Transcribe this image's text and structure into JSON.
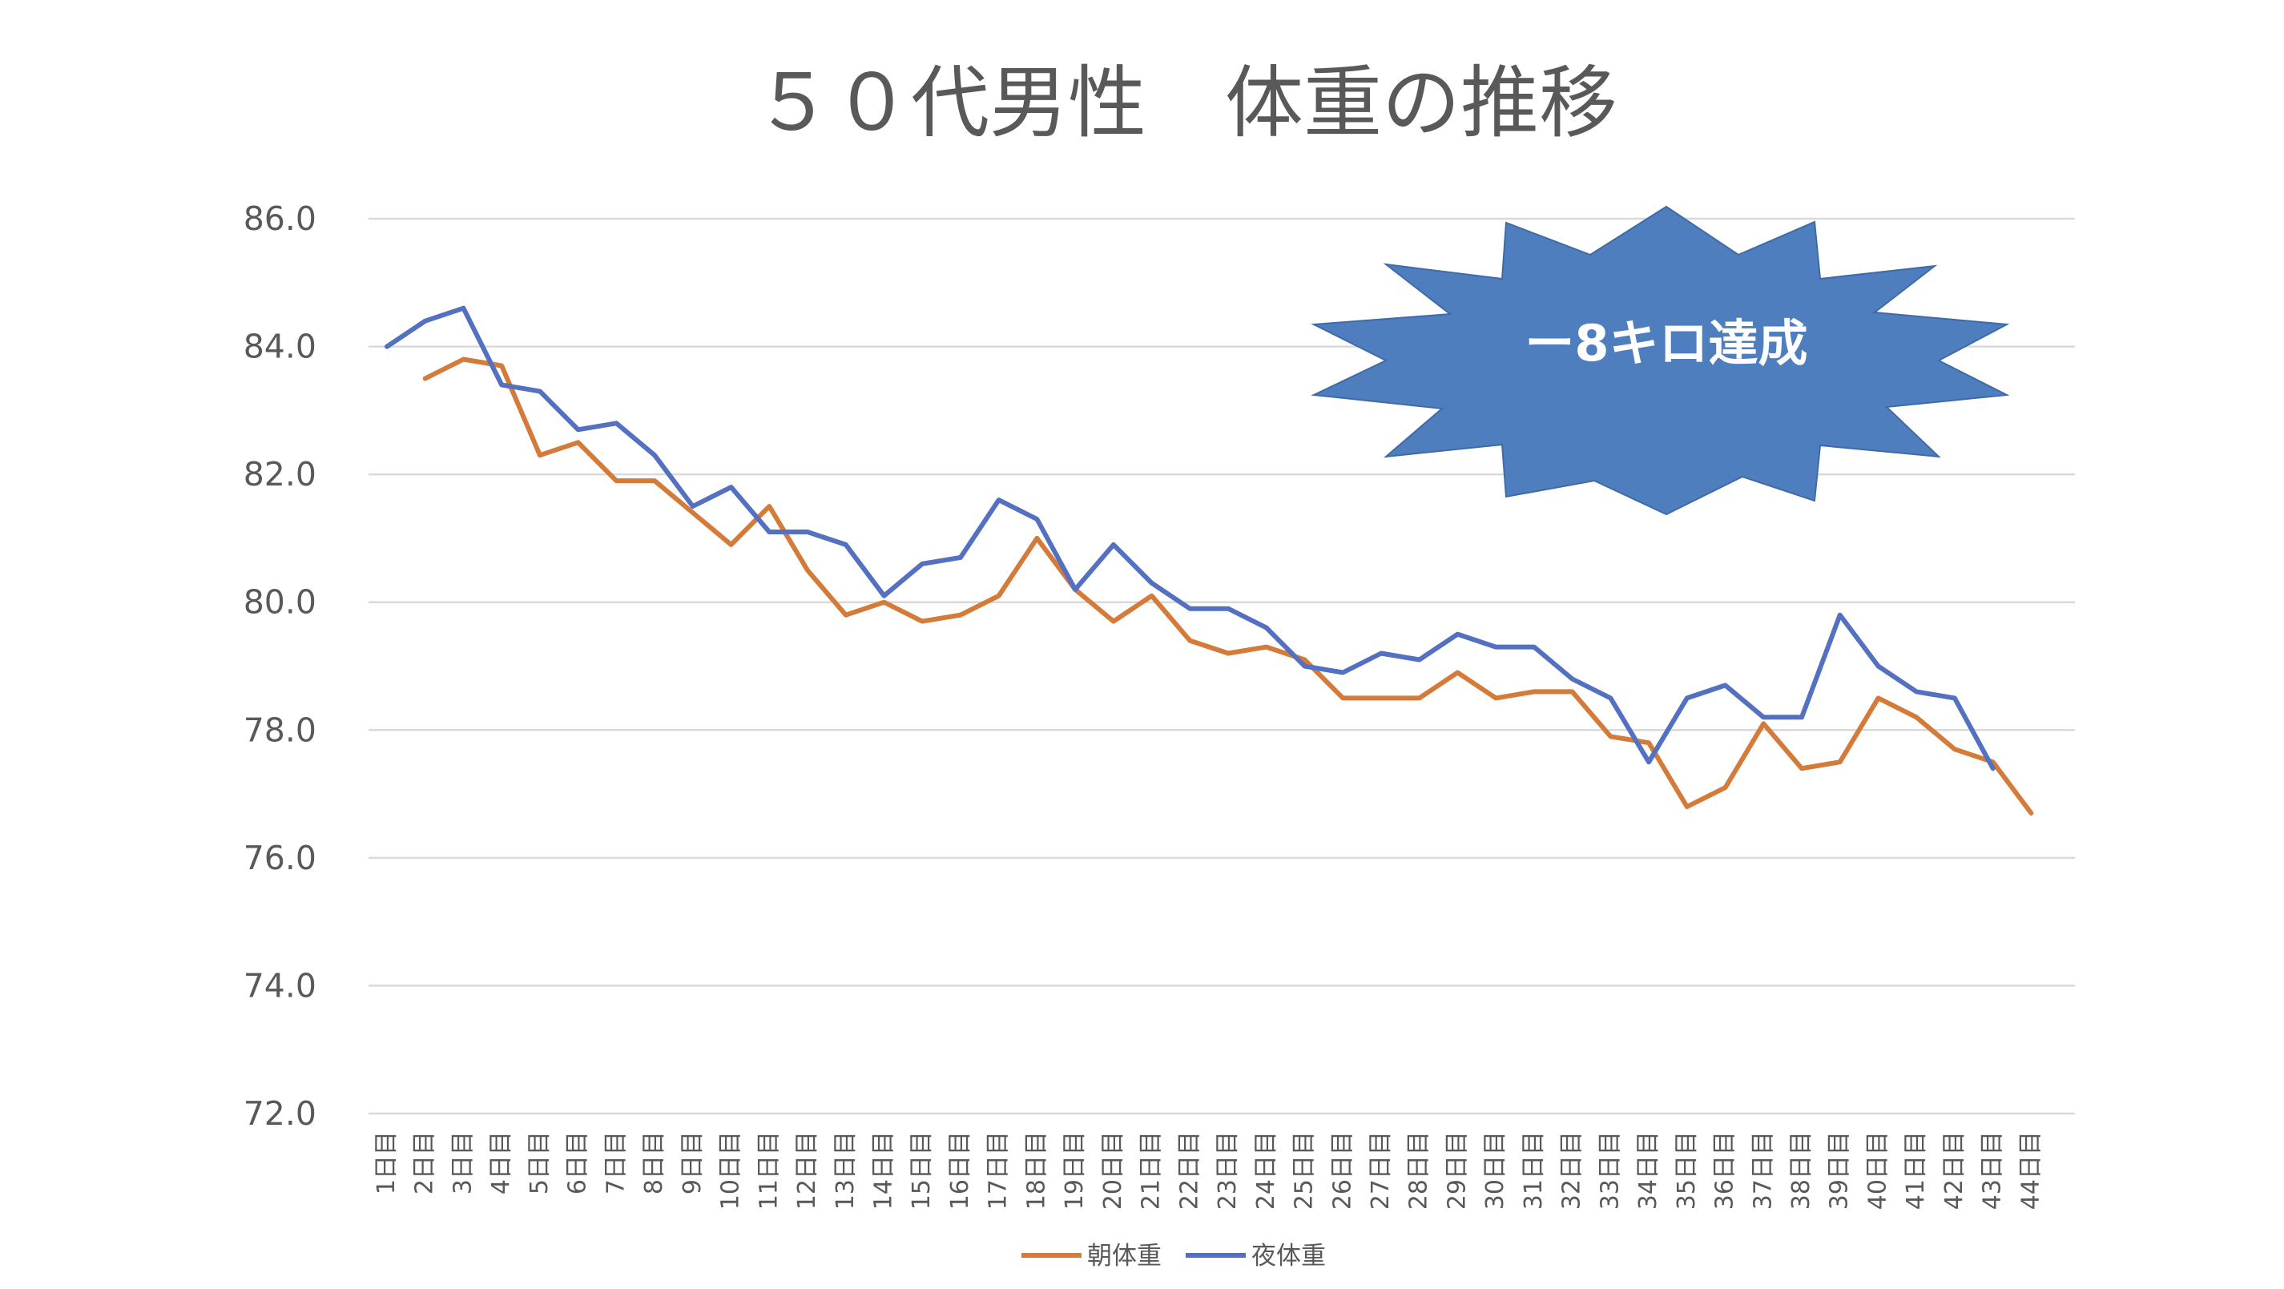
{
  "chart_data": {
    "type": "line",
    "title": "５０代男性　体重の推移",
    "xlabel": "",
    "ylabel": "",
    "ylim": [
      72,
      86
    ],
    "y_ticks": [
      "72.0",
      "74.0",
      "76.0",
      "78.0",
      "80.0",
      "82.0",
      "84.0",
      "86.0"
    ],
    "grid": true,
    "legend_position": "bottom",
    "categories": [
      "1日目",
      "2日目",
      "3日目",
      "4日目",
      "5日目",
      "6日目",
      "7日目",
      "8日目",
      "9日目",
      "10日目",
      "11日目",
      "12日目",
      "13日目",
      "14日目",
      "15日目",
      "16日目",
      "17日目",
      "18日目",
      "19日目",
      "20日目",
      "21日目",
      "22日目",
      "23日目",
      "24日目",
      "25日目",
      "26日目",
      "27日目",
      "28日目",
      "29日目",
      "30日目",
      "31日目",
      "32日目",
      "33日目",
      "34日目",
      "35日目",
      "36日目",
      "37日目",
      "38日目",
      "39日目",
      "40日目",
      "41日目",
      "42日目",
      "43日目",
      "44日目"
    ],
    "series": [
      {
        "name": "朝体重",
        "color": "#D57B3A",
        "values": [
          null,
          83.5,
          83.8,
          83.7,
          82.3,
          82.5,
          81.9,
          81.9,
          81.4,
          80.9,
          81.5,
          80.5,
          79.8,
          80.0,
          79.7,
          79.8,
          80.1,
          81.0,
          80.2,
          79.7,
          80.1,
          79.4,
          79.2,
          79.3,
          79.1,
          78.5,
          78.5,
          78.5,
          78.9,
          78.5,
          78.6,
          78.6,
          77.9,
          77.8,
          76.8,
          77.1,
          78.1,
          77.4,
          77.5,
          78.5,
          78.2,
          77.7,
          77.5,
          76.7
        ]
      },
      {
        "name": "夜体重",
        "color": "#5470C0",
        "values": [
          84.0,
          84.4,
          84.6,
          83.4,
          83.3,
          82.7,
          82.8,
          82.3,
          81.5,
          81.8,
          81.1,
          81.1,
          80.9,
          80.1,
          80.6,
          80.7,
          81.6,
          81.3,
          80.2,
          80.9,
          80.3,
          79.9,
          79.9,
          79.6,
          79.0,
          78.9,
          79.2,
          79.1,
          79.5,
          79.3,
          79.3,
          78.8,
          78.5,
          77.5,
          78.5,
          78.7,
          78.2,
          78.2,
          79.8,
          79.0,
          78.6,
          78.5,
          77.4,
          null
        ]
      }
    ],
    "annotation": {
      "text": "ー8キロ達成",
      "shape": "explosion",
      "fill": "#4E7EBE",
      "text_color": "#FFFFFF"
    }
  }
}
